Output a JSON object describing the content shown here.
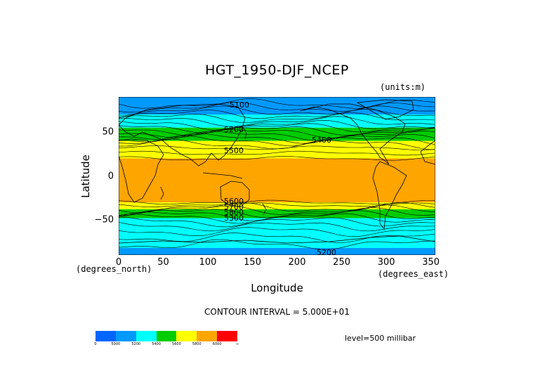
{
  "chart_data": {
    "type": "heatmap",
    "title": "HGT_1950-DJF_NCEP",
    "units_label": "(units:m)",
    "xlabel": "Longitude",
    "ylabel": "Latitude",
    "x_units_label": "(degrees_east)",
    "y_units_label": "(degrees_north)",
    "xlim": [
      0,
      355
    ],
    "ylim": [
      -90,
      90
    ],
    "x_ticks": [
      "0",
      "50",
      "100",
      "150",
      "200",
      "250",
      "300",
      "350"
    ],
    "y_ticks": [
      "50",
      "0",
      "−50"
    ],
    "contour_interval_text": "CONTOUR INTERVAL = 5.000E+01",
    "level_text": "level=500 millibar",
    "color_levels": [
      "0",
      "5000",
      "5200",
      "5400",
      "5600",
      "5800",
      "6000",
      "∞"
    ],
    "colors": [
      "#0066ff",
      "#0099ff",
      "#00ffff",
      "#00cc00",
      "#ffff00",
      "#ffa500",
      "#ff0000"
    ],
    "contour_labels": [
      "5100",
      "5200",
      "5400",
      "5500",
      "5600",
      "5700",
      "5800",
      "5300",
      "5200"
    ],
    "zonal_profile": [
      {
        "lat_from": 90,
        "lat_to": 70,
        "value": 5150
      },
      {
        "lat_from": 70,
        "lat_to": 55,
        "value": 5300
      },
      {
        "lat_from": 55,
        "lat_to": 40,
        "value": 5480
      },
      {
        "lat_from": 40,
        "lat_to": 20,
        "value": 5700
      },
      {
        "lat_from": 20,
        "lat_to": -30,
        "value": 5860
      },
      {
        "lat_from": -30,
        "lat_to": -38,
        "value": 5700
      },
      {
        "lat_from": -38,
        "lat_to": -48,
        "value": 5500
      },
      {
        "lat_from": -48,
        "lat_to": -82,
        "value": 5300
      },
      {
        "lat_from": -82,
        "lat_to": -90,
        "value": 5150
      }
    ]
  }
}
